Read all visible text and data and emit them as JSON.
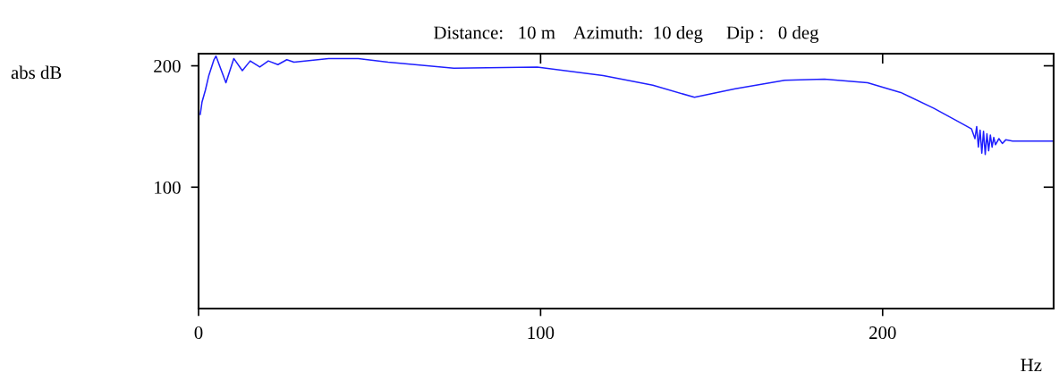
{
  "chart_data": {
    "type": "line",
    "title": "Distance:   10 m    Azimuth:  10 deg     Dip :   0 deg",
    "xlabel": "Hz",
    "ylabel": "abs dB",
    "xlim": [
      0,
      250
    ],
    "ylim": [
      0,
      210
    ],
    "xticks": [
      0,
      100,
      200
    ],
    "yticks": [
      100,
      200
    ],
    "grid": false,
    "marker": "none",
    "line_style": "solid",
    "series": [
      {
        "color": "#1f1fff",
        "x": [
          0.5,
          1,
          2,
          3,
          4.5,
          5.1,
          8.0,
          10.3,
          12.8,
          15.1,
          17.9,
          20.4,
          23.2,
          25.8,
          27.9,
          38,
          46.7,
          55.4,
          66.8,
          74.6,
          99,
          118.3,
          132.8,
          145,
          156.9,
          171.4,
          183,
          195.6,
          205.3,
          215,
          222.8,
          226,
          227,
          227.5,
          228,
          228.5,
          229,
          229.5,
          230,
          230.5,
          231,
          231.5,
          232,
          232.5,
          233,
          234,
          235,
          236,
          238,
          250
        ],
        "values": [
          160,
          170,
          180,
          192,
          205,
          208,
          186,
          206,
          196,
          204,
          199,
          204,
          201,
          205,
          203,
          206,
          206,
          203,
          200,
          198,
          199,
          192,
          184,
          174,
          181,
          188,
          189,
          186,
          178,
          165,
          153,
          148,
          140,
          150,
          133,
          147,
          128,
          146,
          127,
          144,
          130,
          143,
          133,
          141,
          135,
          140,
          136,
          139,
          138,
          138
        ]
      }
    ]
  }
}
